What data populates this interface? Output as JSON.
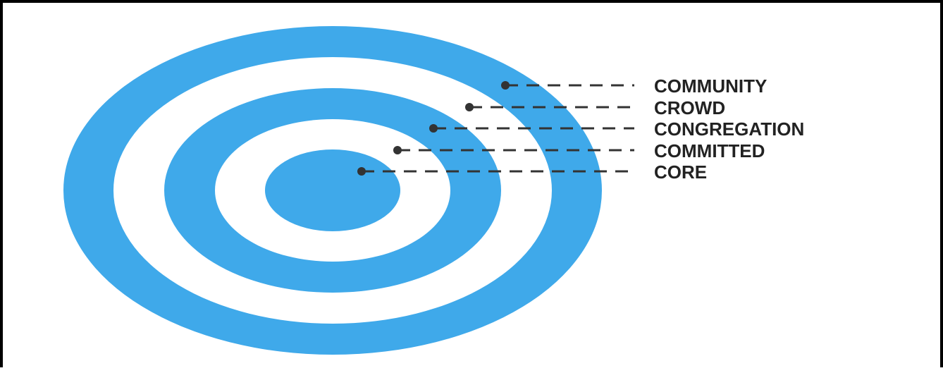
{
  "diagram": {
    "colors": {
      "ring": "#3fa9ea",
      "gap": "#ffffff",
      "pointer": "#333333",
      "label": "#222222",
      "border": "#000000"
    },
    "layers": [
      {
        "label": "COMMUNITY"
      },
      {
        "label": "CROWD"
      },
      {
        "label": "CONGREGATION"
      },
      {
        "label": "COMMITTED"
      },
      {
        "label": "CORE"
      }
    ]
  }
}
